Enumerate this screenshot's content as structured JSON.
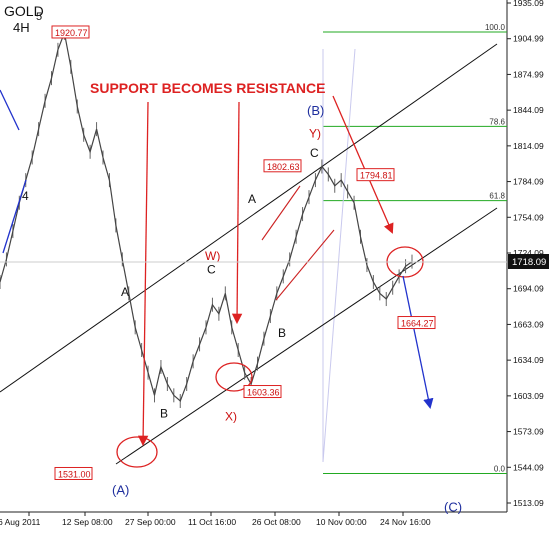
{
  "chart_data": {
    "type": "line",
    "title": "GOLD",
    "subtitle": "4H",
    "title_suffix": "5",
    "x_tick_labels": [
      "6 Aug 2011",
      "12 Sep 08:00",
      "27 Sep 00:00",
      "11 Oct 16:00",
      "26 Oct 08:00",
      "10 Nov 00:00",
      "24 Nov 16:00"
    ],
    "y_tick_labels": [
      "1935.09",
      "1904.99",
      "1874.99",
      "1844.09",
      "1814.09",
      "1784.09",
      "1754.09",
      "1724.09",
      "1694.09",
      "1663.09",
      "1634.09",
      "1603.09",
      "1573.09",
      "1544.09",
      "1513.09"
    ],
    "ylim": [
      1497,
      1949
    ],
    "current_price": "1718.09",
    "price_series": {
      "name": "GOLD 4H close",
      "y": [
        1700,
        1720,
        1745,
        1770,
        1790,
        1810,
        1835,
        1860,
        1880,
        1905,
        1920,
        1890,
        1855,
        1830,
        1815,
        1835,
        1810,
        1790,
        1750,
        1720,
        1690,
        1660,
        1640,
        1620,
        1600,
        1625,
        1610,
        1600,
        1595,
        1610,
        1630,
        1645,
        1660,
        1680,
        1672,
        1690,
        1660,
        1640,
        1620,
        1610,
        1628,
        1650,
        1670,
        1690,
        1705,
        1720,
        1740,
        1760,
        1775,
        1790,
        1802,
        1795,
        1785,
        1790,
        1780,
        1770,
        1740,
        1715,
        1700,
        1690,
        1685,
        1695,
        1705,
        1714,
        1718
      ]
    },
    "price_labels": [
      {
        "id": "high",
        "text": "1920.77",
        "price": 1920.77
      },
      {
        "id": "low",
        "text": "1531.00",
        "price": 1531.0
      },
      {
        "id": "x",
        "text": "1603.36",
        "price": 1603.36
      },
      {
        "id": "y",
        "text": "1802.63",
        "price": 1802.63
      },
      {
        "id": "c2",
        "text": "1794.81",
        "price": 1794.81
      },
      {
        "id": "b2",
        "text": "1664.27",
        "price": 1664.27
      }
    ],
    "fibonacci": {
      "levels": [
        {
          "text": "100.0",
          "price": 1920.77
        },
        {
          "text": "78.6",
          "price": 1837.4
        },
        {
          "text": "61.8",
          "price": 1771.9
        },
        {
          "text": "0.0",
          "price": 1531.0
        }
      ]
    },
    "wave_labels": [
      {
        "text": "(A)",
        "color": "#1f2f9e",
        "price": 1517
      },
      {
        "text": "A",
        "color": "#111111",
        "price": 1692
      },
      {
        "text": "B",
        "color": "#111111",
        "price": 1585
      },
      {
        "text": "C",
        "color": "#111111",
        "price": 1712
      },
      {
        "text": "W)",
        "color": "#cc1111",
        "price": 1724
      },
      {
        "text": "X)",
        "color": "#cc1111",
        "price": 1582
      },
      {
        "text": "A",
        "color": "#111111",
        "price": 1774
      },
      {
        "text": "B",
        "color": "#111111",
        "price": 1656
      },
      {
        "text": "C",
        "color": "#111111",
        "price": 1815
      },
      {
        "text": "Y)",
        "color": "#cc1111",
        "price": 1832
      },
      {
        "text": "(B)",
        "color": "#1f2f9e",
        "price": 1852
      },
      {
        "text": "(C)",
        "color": "#1f2f9e",
        "price": 1502
      },
      {
        "text": "4",
        "color": "#111111",
        "price": 1777
      }
    ],
    "annotation": "SUPPORT BECOMES RESISTANCE"
  }
}
